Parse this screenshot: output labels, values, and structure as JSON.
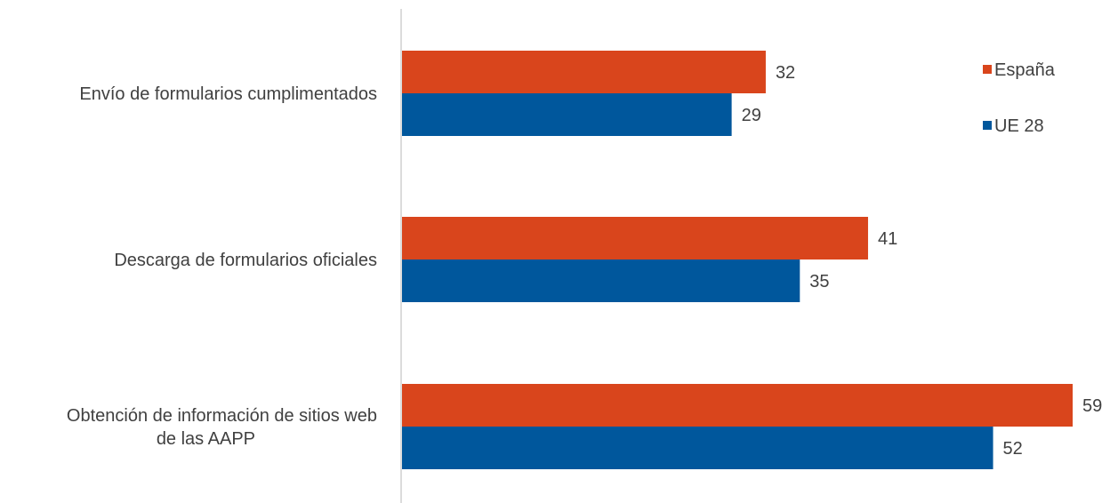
{
  "chart_data": {
    "type": "bar",
    "orientation": "horizontal",
    "categories": [
      [
        "Envío de formularios cumplimentados"
      ],
      [
        "Descarga de formularios oficiales"
      ],
      [
        "Obtención de información de sitios web",
        "de las AAPP"
      ]
    ],
    "series": [
      {
        "name": "España",
        "color": "#d9451c",
        "values": [
          32,
          41,
          59
        ]
      },
      {
        "name": "UE 28",
        "color": "#00579c",
        "values": [
          29,
          35,
          52
        ]
      }
    ],
    "xlim": [
      0,
      59
    ],
    "grid": false,
    "legend": "top-right"
  }
}
